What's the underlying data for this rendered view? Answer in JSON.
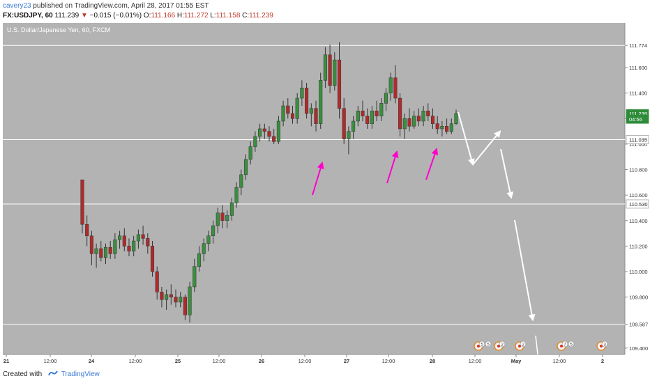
{
  "header": {
    "user": "cavery23",
    "published_text": "published on TradingView.com, April 28, 2017 01:55 EST",
    "symbol": "FX:USDJPY, 60",
    "last": "111.239",
    "change_arrow": "▼",
    "change": "−0.015 (−0.01%)",
    "open_label": "O:",
    "open": "111.166",
    "high_label": "H:",
    "high": "111.272",
    "low_label": "L:",
    "low": "111.158",
    "close_label": "C:",
    "close": "111.239"
  },
  "footer": {
    "created_with": "Created with",
    "brand": "TradingView",
    "logo_icon": "tradingview-logo-icon"
  },
  "chart_data": {
    "type": "candlestick",
    "title": "U.S. Dollar/Japanese Yen, 60, FXCM",
    "ylim": [
      109.35,
      111.95
    ],
    "y_ticks": [
      "111.774",
      "111.600",
      "111.400",
      "111.200",
      "111.000",
      "110.800",
      "110.600",
      "110.400",
      "110.200",
      "110.000",
      "109.800",
      "109.587",
      "109.400"
    ],
    "x_ticks": [
      "21",
      "12:00",
      "24",
      "12:00",
      "25",
      "12:00",
      "26",
      "12:00",
      "27",
      "12:00",
      "28",
      "12:00",
      "May",
      "12:00",
      "2"
    ],
    "price_tags": [
      {
        "label": "111.239",
        "value": 111.239,
        "color": "#2e8b3a"
      },
      {
        "label": "04:56",
        "value": 111.195,
        "color": "#2e8b3a"
      },
      {
        "label": "111.035",
        "value": 111.035,
        "color": "#ffffff"
      },
      {
        "label": "110.530",
        "value": 110.53,
        "color": "#ffffff"
      }
    ],
    "horizontal_lines": [
      111.774,
      111.035,
      110.53,
      109.587
    ],
    "candles": [
      {
        "o": 110.72,
        "h": 110.72,
        "l": 110.3,
        "c": 110.37
      },
      {
        "o": 110.37,
        "h": 110.44,
        "l": 110.2,
        "c": 110.28
      },
      {
        "o": 110.28,
        "h": 110.32,
        "l": 110.05,
        "c": 110.14
      },
      {
        "o": 110.14,
        "h": 110.22,
        "l": 110.03,
        "c": 110.18
      },
      {
        "o": 110.18,
        "h": 110.24,
        "l": 110.08,
        "c": 110.11
      },
      {
        "o": 110.11,
        "h": 110.22,
        "l": 110.06,
        "c": 110.19
      },
      {
        "o": 110.19,
        "h": 110.24,
        "l": 110.1,
        "c": 110.14
      },
      {
        "o": 110.14,
        "h": 110.3,
        "l": 110.1,
        "c": 110.25
      },
      {
        "o": 110.25,
        "h": 110.32,
        "l": 110.18,
        "c": 110.28
      },
      {
        "o": 110.28,
        "h": 110.34,
        "l": 110.16,
        "c": 110.2
      },
      {
        "o": 110.2,
        "h": 110.26,
        "l": 110.12,
        "c": 110.16
      },
      {
        "o": 110.16,
        "h": 110.28,
        "l": 110.12,
        "c": 110.24
      },
      {
        "o": 110.24,
        "h": 110.33,
        "l": 110.18,
        "c": 110.29
      },
      {
        "o": 110.29,
        "h": 110.36,
        "l": 110.21,
        "c": 110.26
      },
      {
        "o": 110.26,
        "h": 110.3,
        "l": 110.14,
        "c": 110.2
      },
      {
        "o": 110.2,
        "h": 110.24,
        "l": 109.96,
        "c": 110.0
      },
      {
        "o": 110.0,
        "h": 110.04,
        "l": 109.78,
        "c": 109.84
      },
      {
        "o": 109.84,
        "h": 109.88,
        "l": 109.72,
        "c": 109.78
      },
      {
        "o": 109.78,
        "h": 109.86,
        "l": 109.7,
        "c": 109.82
      },
      {
        "o": 109.82,
        "h": 109.9,
        "l": 109.74,
        "c": 109.8
      },
      {
        "o": 109.8,
        "h": 109.86,
        "l": 109.72,
        "c": 109.76
      },
      {
        "o": 109.76,
        "h": 109.84,
        "l": 109.72,
        "c": 109.8
      },
      {
        "o": 109.8,
        "h": 109.82,
        "l": 109.62,
        "c": 109.66
      },
      {
        "o": 109.66,
        "h": 109.92,
        "l": 109.6,
        "c": 109.88
      },
      {
        "o": 109.88,
        "h": 110.1,
        "l": 109.84,
        "c": 110.04
      },
      {
        "o": 110.04,
        "h": 110.2,
        "l": 110.0,
        "c": 110.14
      },
      {
        "o": 110.14,
        "h": 110.26,
        "l": 110.08,
        "c": 110.22
      },
      {
        "o": 110.22,
        "h": 110.32,
        "l": 110.16,
        "c": 110.28
      },
      {
        "o": 110.28,
        "h": 110.4,
        "l": 110.22,
        "c": 110.36
      },
      {
        "o": 110.36,
        "h": 110.5,
        "l": 110.3,
        "c": 110.46
      },
      {
        "o": 110.46,
        "h": 110.52,
        "l": 110.34,
        "c": 110.4
      },
      {
        "o": 110.4,
        "h": 110.48,
        "l": 110.34,
        "c": 110.44
      },
      {
        "o": 110.44,
        "h": 110.58,
        "l": 110.4,
        "c": 110.54
      },
      {
        "o": 110.54,
        "h": 110.7,
        "l": 110.5,
        "c": 110.66
      },
      {
        "o": 110.66,
        "h": 110.8,
        "l": 110.6,
        "c": 110.76
      },
      {
        "o": 110.76,
        "h": 110.92,
        "l": 110.72,
        "c": 110.88
      },
      {
        "o": 110.88,
        "h": 111.02,
        "l": 110.84,
        "c": 110.98
      },
      {
        "o": 110.98,
        "h": 111.1,
        "l": 110.94,
        "c": 111.06
      },
      {
        "o": 111.06,
        "h": 111.16,
        "l": 111.02,
        "c": 111.12
      },
      {
        "o": 111.12,
        "h": 111.16,
        "l": 111.04,
        "c": 111.1
      },
      {
        "o": 111.1,
        "h": 111.14,
        "l": 111.02,
        "c": 111.06
      },
      {
        "o": 111.06,
        "h": 111.12,
        "l": 111.0,
        "c": 111.02
      },
      {
        "o": 111.02,
        "h": 111.22,
        "l": 111.0,
        "c": 111.18
      },
      {
        "o": 111.18,
        "h": 111.34,
        "l": 111.14,
        "c": 111.3
      },
      {
        "o": 111.3,
        "h": 111.36,
        "l": 111.2,
        "c": 111.24
      },
      {
        "o": 111.24,
        "h": 111.3,
        "l": 111.16,
        "c": 111.2
      },
      {
        "o": 111.2,
        "h": 111.4,
        "l": 111.16,
        "c": 111.36
      },
      {
        "o": 111.36,
        "h": 111.5,
        "l": 111.3,
        "c": 111.44
      },
      {
        "o": 111.44,
        "h": 111.48,
        "l": 111.2,
        "c": 111.24
      },
      {
        "o": 111.24,
        "h": 111.32,
        "l": 111.14,
        "c": 111.28
      },
      {
        "o": 111.28,
        "h": 111.34,
        "l": 111.1,
        "c": 111.16
      },
      {
        "o": 111.16,
        "h": 111.56,
        "l": 111.12,
        "c": 111.5
      },
      {
        "o": 111.5,
        "h": 111.76,
        "l": 111.44,
        "c": 111.7
      },
      {
        "o": 111.7,
        "h": 111.78,
        "l": 111.4,
        "c": 111.46
      },
      {
        "o": 111.46,
        "h": 111.72,
        "l": 111.42,
        "c": 111.66
      },
      {
        "o": 111.66,
        "h": 111.8,
        "l": 111.2,
        "c": 111.28
      },
      {
        "o": 111.28,
        "h": 111.36,
        "l": 111.0,
        "c": 111.04
      },
      {
        "o": 111.04,
        "h": 111.14,
        "l": 110.92,
        "c": 111.1
      },
      {
        "o": 111.1,
        "h": 111.22,
        "l": 111.04,
        "c": 111.18
      },
      {
        "o": 111.18,
        "h": 111.3,
        "l": 111.14,
        "c": 111.26
      },
      {
        "o": 111.26,
        "h": 111.34,
        "l": 111.18,
        "c": 111.22
      },
      {
        "o": 111.22,
        "h": 111.28,
        "l": 111.12,
        "c": 111.16
      },
      {
        "o": 111.16,
        "h": 111.3,
        "l": 111.12,
        "c": 111.26
      },
      {
        "o": 111.26,
        "h": 111.34,
        "l": 111.18,
        "c": 111.22
      },
      {
        "o": 111.22,
        "h": 111.36,
        "l": 111.18,
        "c": 111.32
      },
      {
        "o": 111.32,
        "h": 111.44,
        "l": 111.26,
        "c": 111.4
      },
      {
        "o": 111.4,
        "h": 111.56,
        "l": 111.34,
        "c": 111.52
      },
      {
        "o": 111.52,
        "h": 111.62,
        "l": 111.32,
        "c": 111.36
      },
      {
        "o": 111.36,
        "h": 111.4,
        "l": 111.06,
        "c": 111.12
      },
      {
        "o": 111.12,
        "h": 111.24,
        "l": 111.04,
        "c": 111.2
      },
      {
        "o": 111.2,
        "h": 111.28,
        "l": 111.1,
        "c": 111.14
      },
      {
        "o": 111.14,
        "h": 111.26,
        "l": 111.12,
        "c": 111.22
      },
      {
        "o": 111.22,
        "h": 111.28,
        "l": 111.14,
        "c": 111.18
      },
      {
        "o": 111.18,
        "h": 111.3,
        "l": 111.14,
        "c": 111.26
      },
      {
        "o": 111.26,
        "h": 111.32,
        "l": 111.18,
        "c": 111.22
      },
      {
        "o": 111.22,
        "h": 111.28,
        "l": 111.12,
        "c": 111.16
      },
      {
        "o": 111.16,
        "h": 111.22,
        "l": 111.08,
        "c": 111.12
      },
      {
        "o": 111.12,
        "h": 111.18,
        "l": 111.06,
        "c": 111.14
      },
      {
        "o": 111.14,
        "h": 111.2,
        "l": 111.08,
        "c": 111.1
      },
      {
        "o": 111.1,
        "h": 111.2,
        "l": 111.08,
        "c": 111.16
      },
      {
        "o": 111.16,
        "h": 111.27,
        "l": 111.15,
        "c": 111.24
      }
    ],
    "annotations": {
      "magenta_arrows": 3,
      "white_projection": [
        {
          "label": "start",
          "value": 111.25
        },
        {
          "label": "p1",
          "value": 110.84
        },
        {
          "label": "p2",
          "value": 111.1
        },
        {
          "label": "p3",
          "value": 110.58
        },
        {
          "label": "p4",
          "value": 109.62
        }
      ]
    },
    "event_icons": [
      {
        "label": "5",
        "label2": "5"
      },
      {
        "label": "2"
      },
      {
        "label": "2"
      },
      {
        "label": "7",
        "label2": "5"
      },
      {
        "label": "3"
      }
    ]
  }
}
